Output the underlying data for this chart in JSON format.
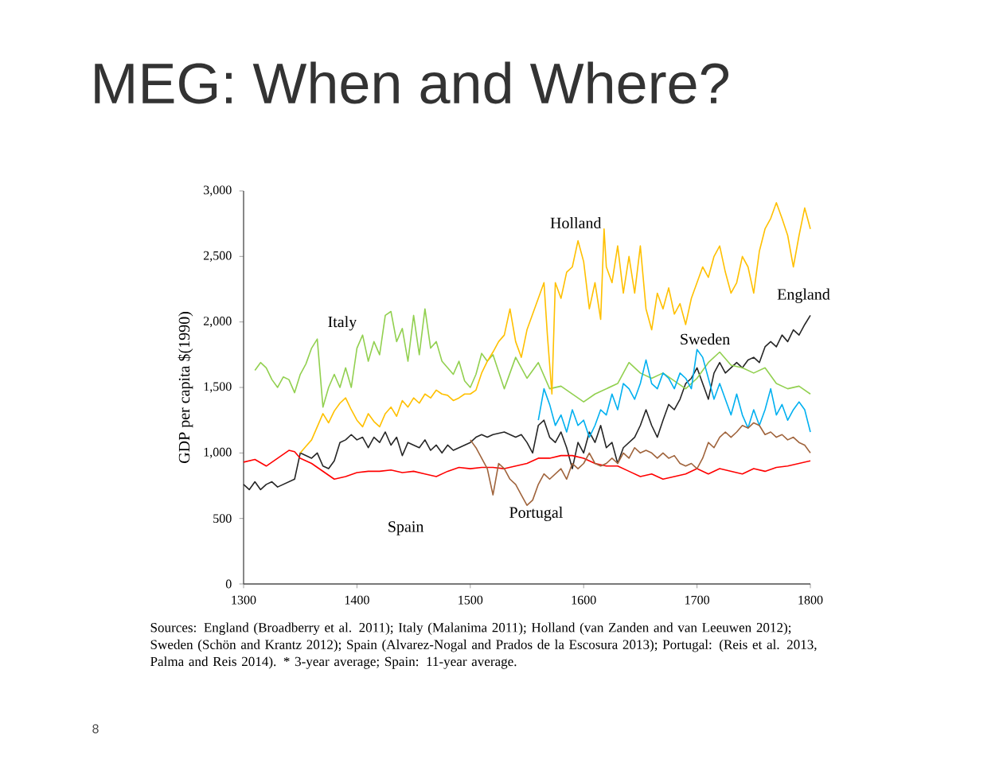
{
  "chart_data": {
    "type": "line",
    "title": "MEG: When and Where?",
    "ylabel": "GDP per capita $(1990)",
    "xlim": [
      1300,
      1800
    ],
    "xticks": [
      1300,
      1400,
      1500,
      1600,
      1700,
      1800
    ],
    "ylim": [
      0,
      3000
    ],
    "yticks": [
      0,
      500,
      {
        "value": 1000,
        "label": "1,000"
      },
      {
        "value": 1500,
        "label": "1,500"
      },
      {
        "value": 2000,
        "label": "2,000"
      },
      {
        "value": 2500,
        "label": "2,500"
      },
      {
        "value": 3000,
        "label": "3,000"
      }
    ],
    "grid": false,
    "legend": false,
    "marker": "none",
    "line_style": "solid",
    "annotations": [
      "Sources: England (Broadberry et al. 2011); Italy (Malanima 2011); Holland (van Zanden and van Leeuwen 2012); Sweden (Schön and Krantz 2012); Spain (Alvarez-Nogal and Prados de la Escosura 2013); Portugal: (Reis et al. 2013, Palma and Reis 2014). * 3-year average; Spain: 11-year average.",
      "8"
    ],
    "series": [
      {
        "name": "England",
        "color": "#262626",
        "x": [
          1300,
          1305,
          1310,
          1315,
          1320,
          1325,
          1330,
          1335,
          1340,
          1345,
          1350,
          1355,
          1360,
          1365,
          1370,
          1375,
          1380,
          1385,
          1390,
          1395,
          1400,
          1405,
          1410,
          1415,
          1420,
          1425,
          1430,
          1435,
          1440,
          1445,
          1450,
          1455,
          1460,
          1465,
          1470,
          1475,
          1480,
          1485,
          1490,
          1495,
          1500,
          1505,
          1510,
          1515,
          1520,
          1530,
          1540,
          1545,
          1550,
          1555,
          1560,
          1565,
          1570,
          1575,
          1580,
          1585,
          1590,
          1595,
          1600,
          1605,
          1610,
          1615,
          1620,
          1625,
          1630,
          1635,
          1640,
          1645,
          1650,
          1655,
          1660,
          1665,
          1670,
          1675,
          1680,
          1685,
          1690,
          1695,
          1700,
          1705,
          1710,
          1715,
          1720,
          1725,
          1730,
          1735,
          1740,
          1745,
          1750,
          1755,
          1760,
          1765,
          1770,
          1775,
          1780,
          1785,
          1790,
          1795,
          1800
        ],
        "values": [
          760,
          720,
          780,
          720,
          760,
          780,
          740,
          760,
          780,
          800,
          1000,
          980,
          960,
          1000,
          900,
          880,
          940,
          1080,
          1100,
          1140,
          1100,
          1120,
          1040,
          1120,
          1080,
          1160,
          1060,
          1120,
          980,
          1080,
          1060,
          1040,
          1100,
          1020,
          1060,
          1000,
          1060,
          1020,
          1040,
          1060,
          1080,
          1120,
          1140,
          1120,
          1140,
          1160,
          1120,
          1140,
          1080,
          1000,
          1210,
          1250,
          1120,
          1080,
          1160,
          1040,
          880,
          1080,
          1000,
          1160,
          1080,
          1210,
          1040,
          1080,
          920,
          1040,
          1080,
          1120,
          1210,
          1330,
          1210,
          1120,
          1250,
          1370,
          1330,
          1410,
          1530,
          1570,
          1650,
          1530,
          1410,
          1610,
          1690,
          1610,
          1650,
          1690,
          1650,
          1710,
          1730,
          1690,
          1810,
          1850,
          1810,
          1900,
          1850,
          1940,
          1900,
          1980,
          2050
        ]
      },
      {
        "name": "Italy",
        "color": "#92d050",
        "x": [
          1310,
          1315,
          1320,
          1325,
          1330,
          1335,
          1340,
          1345,
          1350,
          1355,
          1360,
          1365,
          1370,
          1375,
          1380,
          1385,
          1390,
          1395,
          1400,
          1405,
          1410,
          1415,
          1420,
          1425,
          1430,
          1435,
          1440,
          1445,
          1450,
          1455,
          1460,
          1465,
          1470,
          1475,
          1480,
          1485,
          1490,
          1495,
          1500,
          1505,
          1510,
          1515,
          1520,
          1530,
          1540,
          1550,
          1560,
          1570,
          1580,
          1590,
          1600,
          1610,
          1620,
          1630,
          1640,
          1650,
          1660,
          1670,
          1680,
          1690,
          1700,
          1710,
          1720,
          1730,
          1740,
          1750,
          1760,
          1770,
          1780,
          1790,
          1800
        ],
        "values": [
          1630,
          1690,
          1650,
          1560,
          1500,
          1580,
          1560,
          1460,
          1600,
          1680,
          1800,
          1870,
          1350,
          1500,
          1600,
          1500,
          1650,
          1500,
          1800,
          1900,
          1700,
          1850,
          1750,
          2050,
          2080,
          1850,
          1950,
          1700,
          2050,
          1750,
          2100,
          1800,
          1850,
          1700,
          1650,
          1600,
          1700,
          1550,
          1500,
          1600,
          1760,
          1700,
          1750,
          1490,
          1730,
          1570,
          1690,
          1490,
          1510,
          1450,
          1390,
          1450,
          1490,
          1530,
          1690,
          1610,
          1570,
          1610,
          1550,
          1490,
          1570,
          1690,
          1770,
          1670,
          1650,
          1610,
          1650,
          1530,
          1490,
          1510,
          1450
        ]
      },
      {
        "name": "Holland",
        "color": "#ffc000",
        "x": [
          1350,
          1355,
          1360,
          1365,
          1370,
          1375,
          1380,
          1385,
          1390,
          1395,
          1400,
          1405,
          1410,
          1415,
          1420,
          1425,
          1430,
          1435,
          1440,
          1445,
          1450,
          1455,
          1460,
          1465,
          1470,
          1475,
          1480,
          1485,
          1490,
          1495,
          1500,
          1505,
          1510,
          1515,
          1520,
          1525,
          1530,
          1535,
          1540,
          1545,
          1550,
          1555,
          1560,
          1565,
          1568,
          1572,
          1575,
          1580,
          1585,
          1590,
          1595,
          1600,
          1605,
          1610,
          1615,
          1618,
          1620,
          1625,
          1630,
          1635,
          1640,
          1645,
          1650,
          1655,
          1660,
          1665,
          1670,
          1675,
          1680,
          1685,
          1690,
          1695,
          1700,
          1705,
          1710,
          1715,
          1720,
          1725,
          1730,
          1735,
          1740,
          1745,
          1750,
          1755,
          1760,
          1765,
          1770,
          1775,
          1780,
          1785,
          1790,
          1795,
          1800
        ],
        "values": [
          1000,
          1050,
          1100,
          1200,
          1300,
          1230,
          1320,
          1380,
          1420,
          1330,
          1250,
          1200,
          1300,
          1240,
          1200,
          1300,
          1350,
          1280,
          1400,
          1350,
          1420,
          1380,
          1450,
          1420,
          1480,
          1450,
          1440,
          1400,
          1420,
          1450,
          1450,
          1480,
          1610,
          1700,
          1770,
          1850,
          1900,
          2100,
          1850,
          1730,
          1940,
          2060,
          2180,
          2300,
          1900,
          1450,
          2300,
          2180,
          2380,
          2420,
          2620,
          2460,
          2100,
          2300,
          2020,
          2710,
          2420,
          2300,
          2580,
          2220,
          2500,
          2220,
          2580,
          2100,
          1940,
          2220,
          2100,
          2260,
          2060,
          2140,
          1980,
          2180,
          2300,
          2420,
          2340,
          2500,
          2580,
          2380,
          2220,
          2300,
          2500,
          2420,
          2220,
          2540,
          2710,
          2790,
          2910,
          2790,
          2660,
          2420,
          2660,
          2870,
          2710
        ]
      },
      {
        "name": "Sweden",
        "color": "#00b0f0",
        "x": [
          1560,
          1565,
          1570,
          1575,
          1580,
          1585,
          1590,
          1595,
          1600,
          1605,
          1610,
          1615,
          1620,
          1625,
          1630,
          1635,
          1640,
          1645,
          1650,
          1655,
          1660,
          1665,
          1670,
          1675,
          1680,
          1685,
          1690,
          1695,
          1700,
          1705,
          1710,
          1715,
          1720,
          1725,
          1730,
          1735,
          1740,
          1745,
          1750,
          1755,
          1760,
          1765,
          1770,
          1775,
          1780,
          1785,
          1790,
          1795,
          1800
        ],
        "values": [
          1250,
          1490,
          1370,
          1210,
          1290,
          1160,
          1330,
          1210,
          1250,
          1120,
          1210,
          1330,
          1290,
          1450,
          1330,
          1530,
          1490,
          1410,
          1530,
          1710,
          1530,
          1490,
          1610,
          1570,
          1490,
          1610,
          1570,
          1490,
          1790,
          1730,
          1570,
          1410,
          1530,
          1410,
          1290,
          1450,
          1290,
          1190,
          1330,
          1210,
          1330,
          1490,
          1290,
          1370,
          1250,
          1330,
          1390,
          1330,
          1160
        ]
      },
      {
        "name": "Spain",
        "color": "#ff0000",
        "x": [
          1300,
          1310,
          1320,
          1330,
          1340,
          1345,
          1350,
          1360,
          1370,
          1380,
          1390,
          1400,
          1410,
          1420,
          1430,
          1440,
          1450,
          1460,
          1470,
          1480,
          1490,
          1500,
          1510,
          1520,
          1530,
          1540,
          1550,
          1560,
          1570,
          1580,
          1590,
          1600,
          1610,
          1620,
          1630,
          1640,
          1650,
          1660,
          1670,
          1680,
          1690,
          1700,
          1710,
          1720,
          1730,
          1740,
          1750,
          1760,
          1770,
          1780,
          1790,
          1800
        ],
        "values": [
          930,
          950,
          900,
          960,
          1020,
          1010,
          960,
          920,
          860,
          800,
          820,
          850,
          860,
          860,
          870,
          850,
          860,
          840,
          820,
          860,
          890,
          880,
          890,
          890,
          880,
          900,
          920,
          960,
          960,
          980,
          980,
          960,
          920,
          900,
          900,
          860,
          820,
          840,
          800,
          820,
          840,
          880,
          840,
          880,
          860,
          840,
          880,
          860,
          890,
          900,
          920,
          940
        ]
      },
      {
        "name": "Portugal",
        "color": "#a0643c",
        "x": [
          1500,
          1505,
          1510,
          1515,
          1520,
          1525,
          1530,
          1535,
          1540,
          1545,
          1550,
          1555,
          1560,
          1565,
          1570,
          1575,
          1580,
          1585,
          1590,
          1595,
          1600,
          1605,
          1610,
          1615,
          1620,
          1625,
          1630,
          1635,
          1640,
          1645,
          1650,
          1655,
          1660,
          1665,
          1670,
          1675,
          1680,
          1685,
          1690,
          1695,
          1700,
          1705,
          1710,
          1715,
          1720,
          1725,
          1730,
          1735,
          1740,
          1745,
          1750,
          1755,
          1760,
          1765,
          1770,
          1775,
          1780,
          1785,
          1790,
          1795,
          1800
        ],
        "values": [
          1100,
          1040,
          960,
          880,
          680,
          920,
          880,
          800,
          760,
          680,
          600,
          640,
          760,
          840,
          800,
          840,
          880,
          800,
          920,
          880,
          920,
          1000,
          920,
          900,
          920,
          960,
          920,
          1000,
          960,
          1040,
          1000,
          1020,
          1000,
          960,
          1000,
          960,
          980,
          920,
          900,
          920,
          880,
          960,
          1080,
          1040,
          1120,
          1160,
          1120,
          1160,
          1210,
          1190,
          1230,
          1210,
          1140,
          1160,
          1120,
          1140,
          1100,
          1120,
          1080,
          1060,
          1000
        ]
      }
    ]
  }
}
